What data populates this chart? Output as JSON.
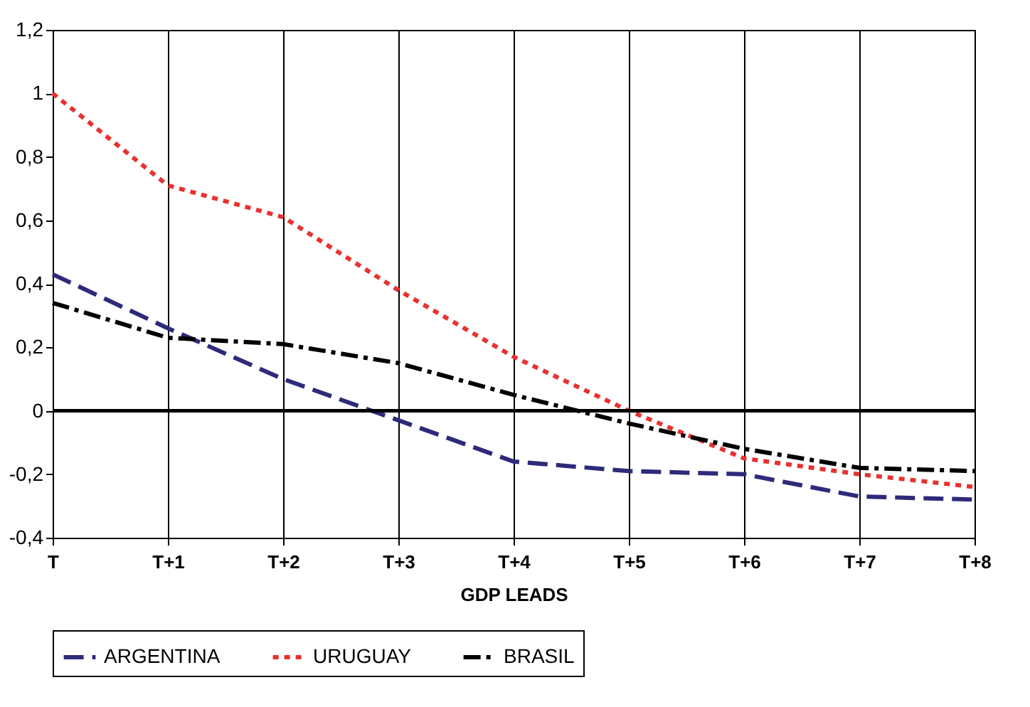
{
  "chart_data": {
    "type": "line",
    "xlabel": "GDP LEADS",
    "categories": [
      "T",
      "T+1",
      "T+2",
      "T+3",
      "T+4",
      "T+5",
      "T+6",
      "T+7",
      "T+8"
    ],
    "ylim": [
      -0.4,
      1.2
    ],
    "yticks": [
      {
        "value": -0.4,
        "label": "-0,4"
      },
      {
        "value": -0.2,
        "label": "-0,2"
      },
      {
        "value": 0,
        "label": "0"
      },
      {
        "value": 0.2,
        "label": "0,2"
      },
      {
        "value": 0.4,
        "label": "0,4"
      },
      {
        "value": 0.6,
        "label": "0,6"
      },
      {
        "value": 0.8,
        "label": "0,8"
      },
      {
        "value": 1,
        "label": "1"
      },
      {
        "value": 1.2,
        "label": "1,2"
      }
    ],
    "grid": "x",
    "legend": "bottom",
    "marker": "none",
    "ref_lines": [
      {
        "axis": "y",
        "value": 0
      }
    ],
    "series": [
      {
        "name": "ARGENTINA",
        "color": "#2e2a7a",
        "line_style": "dashed",
        "values": [
          0.43,
          0.26,
          0.1,
          -0.03,
          -0.16,
          -0.19,
          -0.2,
          -0.27,
          -0.28
        ]
      },
      {
        "name": "URUGUAY",
        "color": "#e8322f",
        "line_style": "dotted",
        "values": [
          1.0,
          0.71,
          0.61,
          0.38,
          0.17,
          0.0,
          -0.15,
          -0.2,
          -0.24
        ]
      },
      {
        "name": "BRASIL",
        "color": "#000000",
        "line_style": "dashdot",
        "values": [
          0.34,
          0.23,
          0.21,
          0.15,
          0.05,
          -0.04,
          -0.12,
          -0.18,
          -0.19
        ]
      }
    ]
  }
}
